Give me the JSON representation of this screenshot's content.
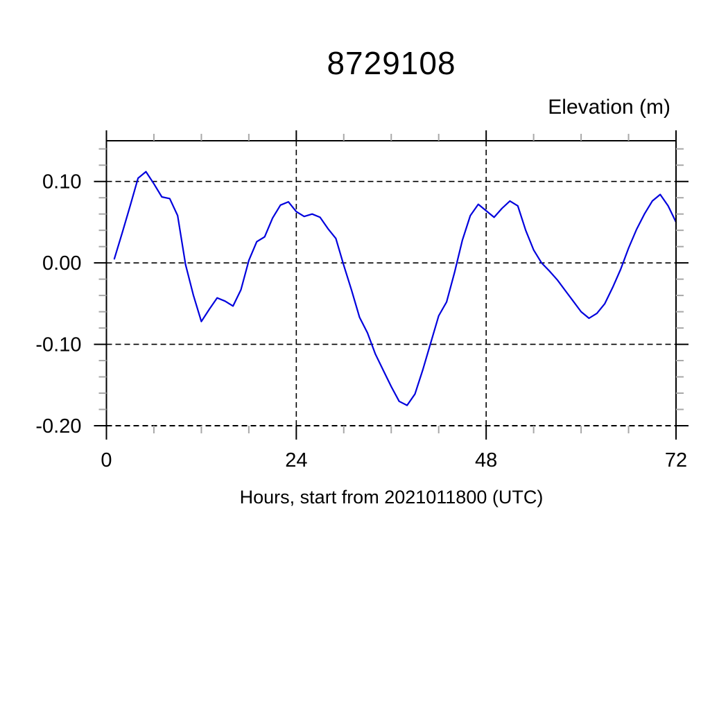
{
  "page": {
    "background": "#ffffff"
  },
  "header": {
    "title": "8729108",
    "right_axis_title": "Elevation (m)"
  },
  "footer": {
    "x_axis_title": "Hours, start from 2021011800 (UTC)"
  },
  "chart_data": {
    "type": "line",
    "title": "8729108",
    "ylabel": "Elevation (m)",
    "xlabel": "Hours, start from 2021011800 (UTC)",
    "series": [
      {
        "name": "elevation",
        "color": "#0000dd",
        "x": [
          1,
          2,
          3,
          4,
          5,
          6,
          7,
          8,
          9,
          10,
          11,
          12,
          13,
          14,
          15,
          16,
          17,
          18,
          19,
          20,
          21,
          22,
          23,
          24,
          25,
          26,
          27,
          28,
          29,
          30,
          31,
          32,
          33,
          34,
          35,
          36,
          37,
          38,
          39,
          40,
          41,
          42,
          43,
          44,
          45,
          46,
          47,
          48,
          49,
          50,
          51,
          52,
          53,
          54,
          55,
          56,
          57,
          58,
          59,
          60,
          61,
          62,
          63,
          64,
          65,
          66,
          67,
          68,
          69,
          70,
          71,
          72
        ],
        "values": [
          0.005,
          0.037,
          0.07,
          0.104,
          0.112,
          0.097,
          0.081,
          0.079,
          0.058,
          -0.002,
          -0.04,
          -0.072,
          -0.057,
          -0.043,
          -0.047,
          -0.053,
          -0.033,
          0.003,
          0.026,
          0.032,
          0.055,
          0.071,
          0.075,
          0.063,
          0.057,
          0.06,
          0.056,
          0.042,
          0.03,
          -0.003,
          -0.034,
          -0.067,
          -0.086,
          -0.112,
          -0.132,
          -0.152,
          -0.17,
          -0.175,
          -0.161,
          -0.131,
          -0.098,
          -0.065,
          -0.048,
          -0.012,
          0.028,
          0.058,
          0.072,
          0.064,
          0.056,
          0.067,
          0.076,
          0.07,
          0.04,
          0.016,
          0.0,
          -0.01,
          -0.021,
          -0.034,
          -0.047,
          -0.06,
          -0.068,
          -0.062,
          -0.05,
          -0.03,
          -0.008,
          0.018,
          0.041,
          0.06,
          0.076,
          0.084,
          0.07,
          0.05
        ]
      }
    ],
    "xlim": [
      0,
      72
    ],
    "ylim": [
      -0.2,
      0.15
    ],
    "xticks_major": [
      0,
      24,
      48,
      72
    ],
    "xtick_labels": [
      "0",
      "24",
      "48",
      "72"
    ],
    "xticks_minor_step": 6,
    "yticks_major": [
      0.1,
      0.0,
      -0.1,
      -0.2
    ],
    "ytick_labels": [
      "0.10",
      "0.00",
      "-0.10",
      "-0.20"
    ],
    "yticks_minor_step": 0.02,
    "grid": {
      "x": [
        24,
        48
      ],
      "y": [
        0.1,
        0.0,
        -0.1,
        -0.2
      ],
      "style": "dashed"
    },
    "legend": "none",
    "frame": "box with outward ticks, bottom edge dashed at -0.20"
  }
}
